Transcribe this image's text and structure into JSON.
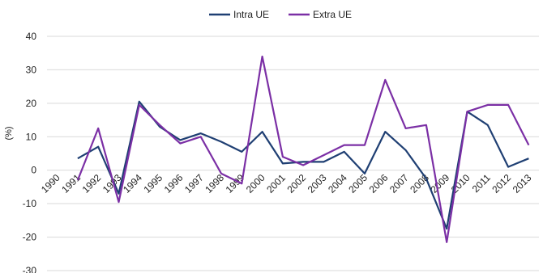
{
  "chart_data": {
    "type": "line",
    "title": "",
    "xlabel": "",
    "ylabel": "(%)",
    "ylim": [
      -30,
      40
    ],
    "yticks": [
      40,
      30,
      20,
      10,
      0,
      -10,
      -20,
      -30
    ],
    "grid": "horizontal",
    "legend": "top",
    "categories": [
      "1990",
      "1991",
      "1992",
      "1993",
      "1994",
      "1995",
      "1996",
      "1997",
      "1998",
      "1999",
      "2000",
      "2001",
      "2002",
      "2003",
      "2004",
      "2005",
      "2006",
      "2007",
      "2008",
      "2009",
      "2010",
      "2011",
      "2012",
      "2013"
    ],
    "series": [
      {
        "name": "Intra UE",
        "color": "#1f3f73",
        "values": [
          null,
          3.5,
          7,
          -7,
          20.5,
          13,
          9,
          11,
          8.5,
          5.5,
          11.5,
          2,
          2.5,
          2.5,
          5.5,
          -1,
          11.5,
          6,
          -2.5,
          -17.5,
          17.5,
          13.5,
          1,
          3.5
        ]
      },
      {
        "name": "Extra UE",
        "color": "#7b2fa5",
        "values": [
          null,
          -3,
          12.5,
          -9.5,
          19.5,
          13.5,
          8,
          10,
          -1,
          -4,
          34,
          4,
          1.5,
          4.5,
          7.5,
          7.5,
          27,
          12.5,
          13.5,
          -21.5,
          17.5,
          19.5,
          19.5,
          7.5
        ]
      }
    ]
  }
}
